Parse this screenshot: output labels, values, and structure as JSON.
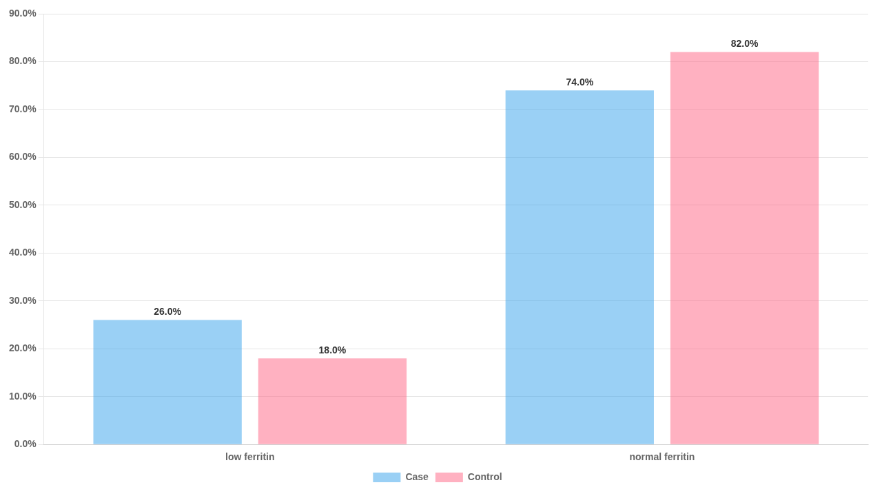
{
  "chart_data": {
    "type": "bar",
    "categories": [
      "low ferritin",
      "normal ferritin"
    ],
    "series": [
      {
        "name": "Case",
        "values": [
          26.0,
          74.0
        ],
        "value_labels": [
          "26.0%",
          "74.0%"
        ]
      },
      {
        "name": "Control",
        "values": [
          18.0,
          82.0
        ],
        "value_labels": [
          "18.0%",
          "82.0%"
        ]
      }
    ],
    "ylim": [
      0,
      90
    ],
    "yticks": [
      {
        "value": 0,
        "label": "0.0%"
      },
      {
        "value": 10,
        "label": "10.0%"
      },
      {
        "value": 20,
        "label": "20.0%"
      },
      {
        "value": 30,
        "label": "30.0%"
      },
      {
        "value": 40,
        "label": "40.0%"
      },
      {
        "value": 50,
        "label": "50.0%"
      },
      {
        "value": 60,
        "label": "60.0%"
      },
      {
        "value": 70,
        "label": "70.0%"
      },
      {
        "value": 80,
        "label": "80.0%"
      },
      {
        "value": 90,
        "label": "90.0%"
      }
    ],
    "grid": true,
    "legend": "bottom",
    "data_labels": true
  }
}
